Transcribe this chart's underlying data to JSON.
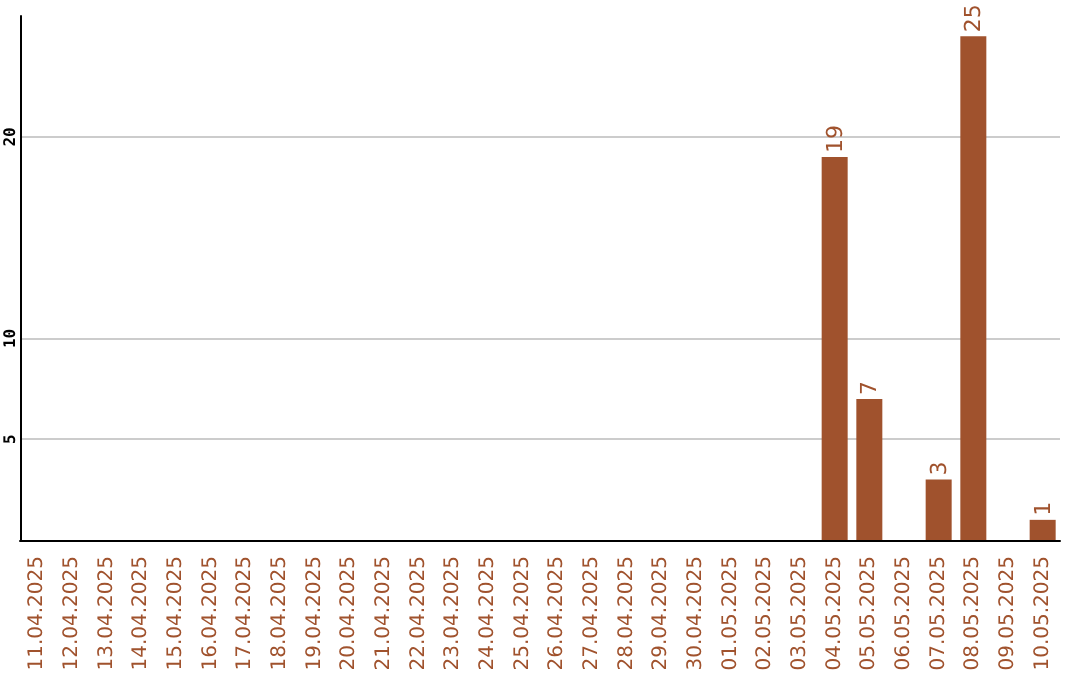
{
  "chart_data": {
    "type": "bar",
    "categories": [
      "11.04.2025",
      "12.04.2025",
      "13.04.2025",
      "14.04.2025",
      "15.04.2025",
      "16.04.2025",
      "17.04.2025",
      "18.04.2025",
      "19.04.2025",
      "20.04.2025",
      "21.04.2025",
      "22.04.2025",
      "23.04.2025",
      "24.04.2025",
      "25.04.2025",
      "26.04.2025",
      "27.04.2025",
      "28.04.2025",
      "29.04.2025",
      "30.04.2025",
      "01.05.2025",
      "02.05.2025",
      "03.05.2025",
      "04.05.2025",
      "05.05.2025",
      "06.05.2025",
      "07.05.2025",
      "08.05.2025",
      "09.05.2025",
      "10.05.2025"
    ],
    "values": [
      0,
      0,
      0,
      0,
      0,
      0,
      0,
      0,
      0,
      0,
      0,
      0,
      0,
      0,
      0,
      0,
      0,
      0,
      0,
      0,
      0,
      0,
      0,
      19,
      7,
      0,
      3,
      25,
      0,
      1
    ],
    "value_labels": [
      null,
      null,
      null,
      null,
      null,
      null,
      null,
      null,
      null,
      null,
      null,
      null,
      null,
      null,
      null,
      null,
      null,
      null,
      null,
      null,
      null,
      null,
      null,
      "19",
      "7",
      null,
      "3",
      "25",
      null,
      "1"
    ],
    "color": "#a0522d",
    "ylim": [
      0,
      26
    ],
    "yticks": [
      5,
      10,
      20
    ],
    "grid": "y"
  }
}
